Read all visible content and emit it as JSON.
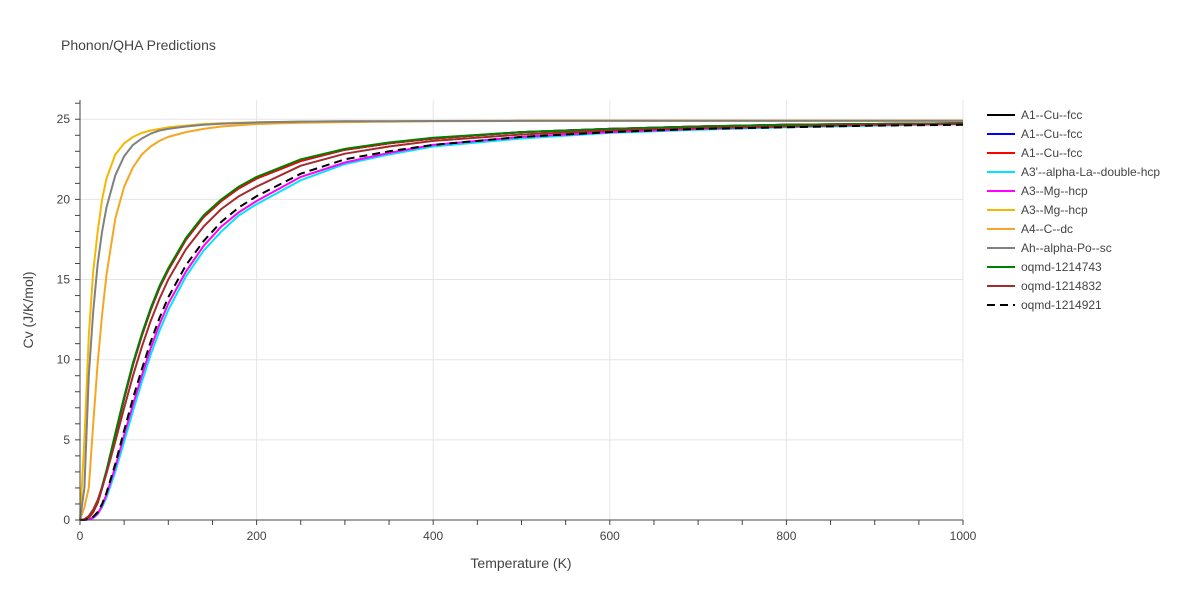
{
  "chart_data": {
    "type": "line",
    "title": "Phonon/QHA Predictions",
    "xlabel": "Temperature (K)",
    "ylabel": "Cv (J/K/mol)",
    "xlim": [
      0,
      1000
    ],
    "ylim": [
      0,
      26.2
    ],
    "x_ticks": [
      0,
      200,
      400,
      600,
      800,
      1000
    ],
    "y_ticks": [
      0,
      5,
      10,
      15,
      20,
      25
    ],
    "grid": true,
    "legend_position": "right",
    "x": [
      0,
      5,
      10,
      15,
      20,
      25,
      30,
      40,
      50,
      60,
      70,
      80,
      90,
      100,
      120,
      140,
      160,
      180,
      200,
      250,
      300,
      350,
      400,
      500,
      600,
      700,
      800,
      900,
      1000
    ],
    "series": [
      {
        "name": "A1--Cu--fcc",
        "color": "#000000",
        "dash": "solid",
        "values": [
          0,
          0.02,
          0.15,
          0.5,
          1.1,
          2.0,
          3.0,
          5.3,
          7.6,
          9.7,
          11.5,
          13.1,
          14.5,
          15.6,
          17.5,
          18.9,
          19.9,
          20.7,
          21.3,
          22.4,
          23.1,
          23.5,
          23.8,
          24.2,
          24.4,
          24.55,
          24.65,
          24.7,
          24.75
        ]
      },
      {
        "name": "A1--Cu--fcc",
        "color": "#0000ff",
        "dash": "solid",
        "values": [
          0,
          0.02,
          0.15,
          0.5,
          1.1,
          2.0,
          3.0,
          5.3,
          7.6,
          9.7,
          11.5,
          13.1,
          14.5,
          15.6,
          17.5,
          18.9,
          19.9,
          20.7,
          21.3,
          22.4,
          23.1,
          23.5,
          23.8,
          24.2,
          24.4,
          24.55,
          24.65,
          24.7,
          24.75
        ]
      },
      {
        "name": "A1--Cu--fcc",
        "color": "#ff0000",
        "dash": "solid",
        "values": [
          0,
          0.02,
          0.15,
          0.5,
          1.1,
          2.0,
          3.0,
          5.3,
          7.6,
          9.7,
          11.5,
          13.1,
          14.5,
          15.6,
          17.5,
          18.9,
          19.9,
          20.7,
          21.3,
          22.4,
          23.1,
          23.5,
          23.8,
          24.2,
          24.4,
          24.55,
          24.65,
          24.7,
          24.75
        ]
      },
      {
        "name": "A3'--alpha-La--double-hcp",
        "color": "#00e5ff",
        "dash": "solid",
        "values": [
          0,
          0.0,
          0.03,
          0.12,
          0.35,
          0.8,
          1.4,
          3.0,
          4.9,
          6.8,
          8.6,
          10.3,
          11.8,
          13.1,
          15.2,
          16.8,
          18.0,
          19.0,
          19.7,
          21.2,
          22.2,
          22.8,
          23.3,
          23.8,
          24.15,
          24.35,
          24.5,
          24.6,
          24.7
        ]
      },
      {
        "name": "A3--Mg--hcp",
        "color": "#ff00ff",
        "dash": "solid",
        "values": [
          0,
          0.0,
          0.04,
          0.15,
          0.4,
          0.9,
          1.6,
          3.3,
          5.3,
          7.2,
          9.0,
          10.7,
          12.2,
          13.5,
          15.5,
          17.1,
          18.3,
          19.2,
          19.9,
          21.4,
          22.3,
          22.9,
          23.4,
          23.9,
          24.2,
          24.4,
          24.55,
          24.65,
          24.7
        ]
      },
      {
        "name": "A3--Mg--hcp",
        "color": "#f5b800",
        "dash": "solid",
        "values": [
          0,
          5.0,
          11.5,
          15.5,
          18.0,
          20.0,
          21.3,
          22.8,
          23.5,
          23.9,
          24.15,
          24.3,
          24.4,
          24.5,
          24.6,
          24.7,
          24.75,
          24.78,
          24.8,
          24.85,
          24.87,
          24.88,
          24.89,
          24.9,
          24.9,
          24.9,
          24.9,
          24.9,
          24.9
        ]
      },
      {
        "name": "A4--C--dc",
        "color": "#f5a623",
        "dash": "solid",
        "values": [
          0,
          0.8,
          2.0,
          6.0,
          9.8,
          12.8,
          15.3,
          18.8,
          20.8,
          22.0,
          22.8,
          23.3,
          23.65,
          23.9,
          24.2,
          24.4,
          24.55,
          24.63,
          24.7,
          24.78,
          24.82,
          24.85,
          24.87,
          24.89,
          24.9,
          24.9,
          24.9,
          24.9,
          24.9
        ]
      },
      {
        "name": "Ah--alpha-Po--sc",
        "color": "#808080",
        "dash": "solid",
        "values": [
          0,
          2.0,
          9.0,
          13.0,
          16.0,
          18.0,
          19.5,
          21.5,
          22.7,
          23.4,
          23.8,
          24.1,
          24.3,
          24.4,
          24.55,
          24.65,
          24.72,
          24.76,
          24.8,
          24.85,
          24.87,
          24.88,
          24.89,
          24.9,
          24.9,
          24.9,
          24.9,
          24.9,
          24.9
        ]
      },
      {
        "name": "oqmd-1214743",
        "color": "#008000",
        "dash": "solid",
        "values": [
          0,
          0.03,
          0.2,
          0.6,
          1.2,
          2.1,
          3.1,
          5.4,
          7.7,
          9.8,
          11.6,
          13.2,
          14.6,
          15.7,
          17.6,
          19.0,
          20.0,
          20.8,
          21.4,
          22.5,
          23.15,
          23.55,
          23.85,
          24.2,
          24.4,
          24.55,
          24.65,
          24.7,
          24.75
        ]
      },
      {
        "name": "oqmd-1214832",
        "color": "#a52a2a",
        "dash": "solid",
        "values": [
          0,
          0.05,
          0.25,
          0.65,
          1.25,
          2.0,
          2.9,
          4.9,
          7.0,
          9.0,
          10.8,
          12.4,
          13.8,
          15.0,
          16.9,
          18.3,
          19.4,
          20.2,
          20.8,
          22.1,
          22.85,
          23.3,
          23.65,
          24.05,
          24.3,
          24.45,
          24.55,
          24.65,
          24.7
        ]
      },
      {
        "name": "oqmd-1214921",
        "color": "#000000",
        "dash": "dash",
        "values": [
          0,
          0.0,
          0.05,
          0.2,
          0.5,
          1.0,
          1.7,
          3.5,
          5.6,
          7.6,
          9.4,
          11.1,
          12.6,
          13.9,
          15.9,
          17.4,
          18.6,
          19.5,
          20.2,
          21.6,
          22.5,
          23.0,
          23.4,
          23.9,
          24.2,
          24.4,
          24.5,
          24.6,
          24.65
        ]
      }
    ]
  }
}
